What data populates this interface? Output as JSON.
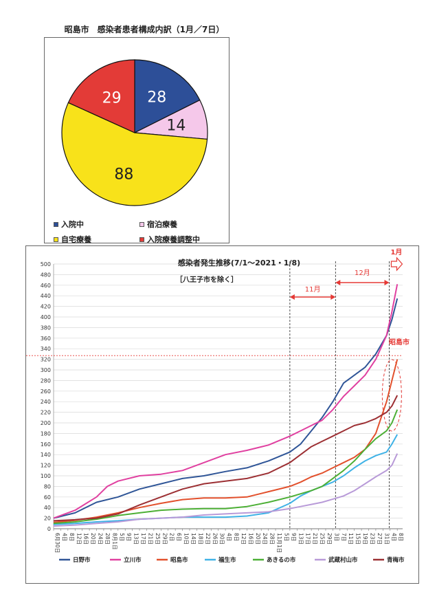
{
  "chart_data": [
    {
      "type": "pie",
      "title": "昭島市　感染者患者構成内訳（1月／7日）",
      "slices": [
        {
          "name": "入院中",
          "value": 28,
          "color": "#2d4f98"
        },
        {
          "name": "宿泊療養",
          "value": 14,
          "color": "#f5c8ea"
        },
        {
          "name": "自宅療養",
          "value": 88,
          "color": "#f8e21a"
        },
        {
          "name": "入院療養調整中",
          "value": 29,
          "color": "#e33b37"
        }
      ],
      "legend_position": "bottom"
    },
    {
      "type": "line",
      "title": "感染者発生推移(7/1～2021・1/8)",
      "subtitle": "［八王子市を除く］",
      "ylim": [
        0,
        500
      ],
      "y_ticks": [
        0,
        20,
        40,
        60,
        80,
        100,
        120,
        140,
        160,
        180,
        200,
        220,
        240,
        260,
        280,
        300,
        320,
        340,
        360,
        380,
        400,
        420,
        440,
        460,
        480,
        500
      ],
      "x_tick_labels": [
        "6月30日",
        "4日",
        "8日",
        "12日",
        "16日",
        "20日",
        "24日",
        "28日",
        "8月1日",
        "5日",
        "9日",
        "13日",
        "17日",
        "21日",
        "25日",
        "29日",
        "2日",
        "6日",
        "10日",
        "14日",
        "18日",
        "22日",
        "26日",
        "30日",
        "4日",
        "8日",
        "12日",
        "16日",
        "20日",
        "24日",
        "28日",
        "11月1日",
        "5日",
        "9日",
        "13日",
        "17日",
        "21日",
        "25日",
        "29日",
        "3日",
        "7日",
        "11日",
        "15日",
        "19日",
        "23日",
        "27日",
        "31日",
        "4日",
        "8日"
      ],
      "grid": true,
      "legend_position": "bottom",
      "annotations": {
        "nov_label": "11月",
        "dec_label": "12月",
        "jan_label": "1月",
        "city_label": "昭島市",
        "reference_y": 327
      },
      "series": [
        {
          "name": "日野市",
          "color": "#2f5597",
          "points": [
            [
              0,
              20
            ],
            [
              8,
              30
            ],
            [
              16,
              50
            ],
            [
              24,
              60
            ],
            [
              32,
              75
            ],
            [
              40,
              85
            ],
            [
              48,
              95
            ],
            [
              56,
              100
            ],
            [
              64,
              108
            ],
            [
              72,
              115
            ],
            [
              80,
              128
            ],
            [
              88,
              145
            ],
            [
              92,
              160
            ],
            [
              96,
              185
            ],
            [
              100,
              210
            ],
            [
              104,
              240
            ],
            [
              108,
              275
            ],
            [
              112,
              290
            ],
            [
              116,
              305
            ],
            [
              120,
              330
            ],
            [
              124,
              365
            ],
            [
              126,
              395
            ],
            [
              128,
              435
            ]
          ]
        },
        {
          "name": "立川市",
          "color": "#e040a0",
          "points": [
            [
              0,
              20
            ],
            [
              8,
              35
            ],
            [
              16,
              60
            ],
            [
              20,
              80
            ],
            [
              24,
              90
            ],
            [
              32,
              100
            ],
            [
              40,
              103
            ],
            [
              48,
              110
            ],
            [
              56,
              125
            ],
            [
              64,
              140
            ],
            [
              72,
              148
            ],
            [
              80,
              158
            ],
            [
              88,
              175
            ],
            [
              92,
              185
            ],
            [
              96,
              195
            ],
            [
              100,
              205
            ],
            [
              104,
              225
            ],
            [
              108,
              250
            ],
            [
              112,
              270
            ],
            [
              116,
              290
            ],
            [
              120,
              320
            ],
            [
              124,
              365
            ],
            [
              126,
              410
            ],
            [
              128,
              462
            ]
          ]
        },
        {
          "name": "昭島市",
          "color": "#e2502c",
          "points": [
            [
              0,
              12
            ],
            [
              8,
              16
            ],
            [
              16,
              22
            ],
            [
              24,
              30
            ],
            [
              32,
              40
            ],
            [
              40,
              48
            ],
            [
              48,
              55
            ],
            [
              56,
              58
            ],
            [
              64,
              58
            ],
            [
              72,
              60
            ],
            [
              80,
              70
            ],
            [
              88,
              80
            ],
            [
              92,
              88
            ],
            [
              96,
              98
            ],
            [
              100,
              105
            ],
            [
              104,
              115
            ],
            [
              108,
              125
            ],
            [
              112,
              135
            ],
            [
              116,
              150
            ],
            [
              120,
              180
            ],
            [
              124,
              240
            ],
            [
              126,
              280
            ],
            [
              128,
              320
            ]
          ]
        },
        {
          "name": "福生市",
          "color": "#3fb2e6",
          "points": [
            [
              0,
              8
            ],
            [
              8,
              10
            ],
            [
              16,
              13
            ],
            [
              24,
              15
            ],
            [
              32,
              18
            ],
            [
              40,
              20
            ],
            [
              48,
              22
            ],
            [
              56,
              22
            ],
            [
              64,
              22
            ],
            [
              72,
              24
            ],
            [
              80,
              30
            ],
            [
              88,
              48
            ],
            [
              92,
              62
            ],
            [
              96,
              72
            ],
            [
              100,
              80
            ],
            [
              104,
              88
            ],
            [
              108,
              100
            ],
            [
              112,
              115
            ],
            [
              116,
              128
            ],
            [
              120,
              138
            ],
            [
              124,
              145
            ],
            [
              126,
              160
            ],
            [
              128,
              178
            ]
          ]
        },
        {
          "name": "あきるの市",
          "color": "#4caf35",
          "points": [
            [
              0,
              10
            ],
            [
              8,
              13
            ],
            [
              16,
              18
            ],
            [
              24,
              25
            ],
            [
              32,
              30
            ],
            [
              40,
              35
            ],
            [
              48,
              37
            ],
            [
              56,
              38
            ],
            [
              64,
              38
            ],
            [
              72,
              42
            ],
            [
              80,
              50
            ],
            [
              88,
              60
            ],
            [
              92,
              66
            ],
            [
              96,
              72
            ],
            [
              100,
              80
            ],
            [
              104,
              95
            ],
            [
              108,
              110
            ],
            [
              112,
              128
            ],
            [
              116,
              150
            ],
            [
              120,
              170
            ],
            [
              124,
              185
            ],
            [
              126,
              200
            ],
            [
              128,
              225
            ]
          ]
        },
        {
          "name": "武蔵村山市",
          "color": "#b89ad8",
          "points": [
            [
              0,
              5
            ],
            [
              8,
              7
            ],
            [
              16,
              10
            ],
            [
              24,
              13
            ],
            [
              32,
              18
            ],
            [
              40,
              20
            ],
            [
              48,
              22
            ],
            [
              56,
              26
            ],
            [
              64,
              28
            ],
            [
              72,
              30
            ],
            [
              80,
              32
            ],
            [
              88,
              38
            ],
            [
              92,
              42
            ],
            [
              96,
              46
            ],
            [
              100,
              50
            ],
            [
              104,
              56
            ],
            [
              108,
              62
            ],
            [
              112,
              72
            ],
            [
              116,
              85
            ],
            [
              120,
              98
            ],
            [
              124,
              110
            ],
            [
              126,
              120
            ],
            [
              128,
              142
            ]
          ]
        },
        {
          "name": "青梅市",
          "color": "#9c2f33",
          "points": [
            [
              0,
              15
            ],
            [
              8,
              17
            ],
            [
              16,
              20
            ],
            [
              24,
              28
            ],
            [
              32,
              45
            ],
            [
              40,
              60
            ],
            [
              48,
              75
            ],
            [
              56,
              85
            ],
            [
              64,
              90
            ],
            [
              72,
              95
            ],
            [
              80,
              105
            ],
            [
              88,
              125
            ],
            [
              92,
              140
            ],
            [
              96,
              155
            ],
            [
              100,
              165
            ],
            [
              104,
              175
            ],
            [
              108,
              185
            ],
            [
              112,
              195
            ],
            [
              116,
              200
            ],
            [
              120,
              208
            ],
            [
              124,
              220
            ],
            [
              126,
              232
            ],
            [
              128,
              252
            ]
          ]
        }
      ],
      "x_markers": {
        "nov_start": 88,
        "dec_start": 105,
        "jan_start": 125
      },
      "x_max": 130
    }
  ]
}
